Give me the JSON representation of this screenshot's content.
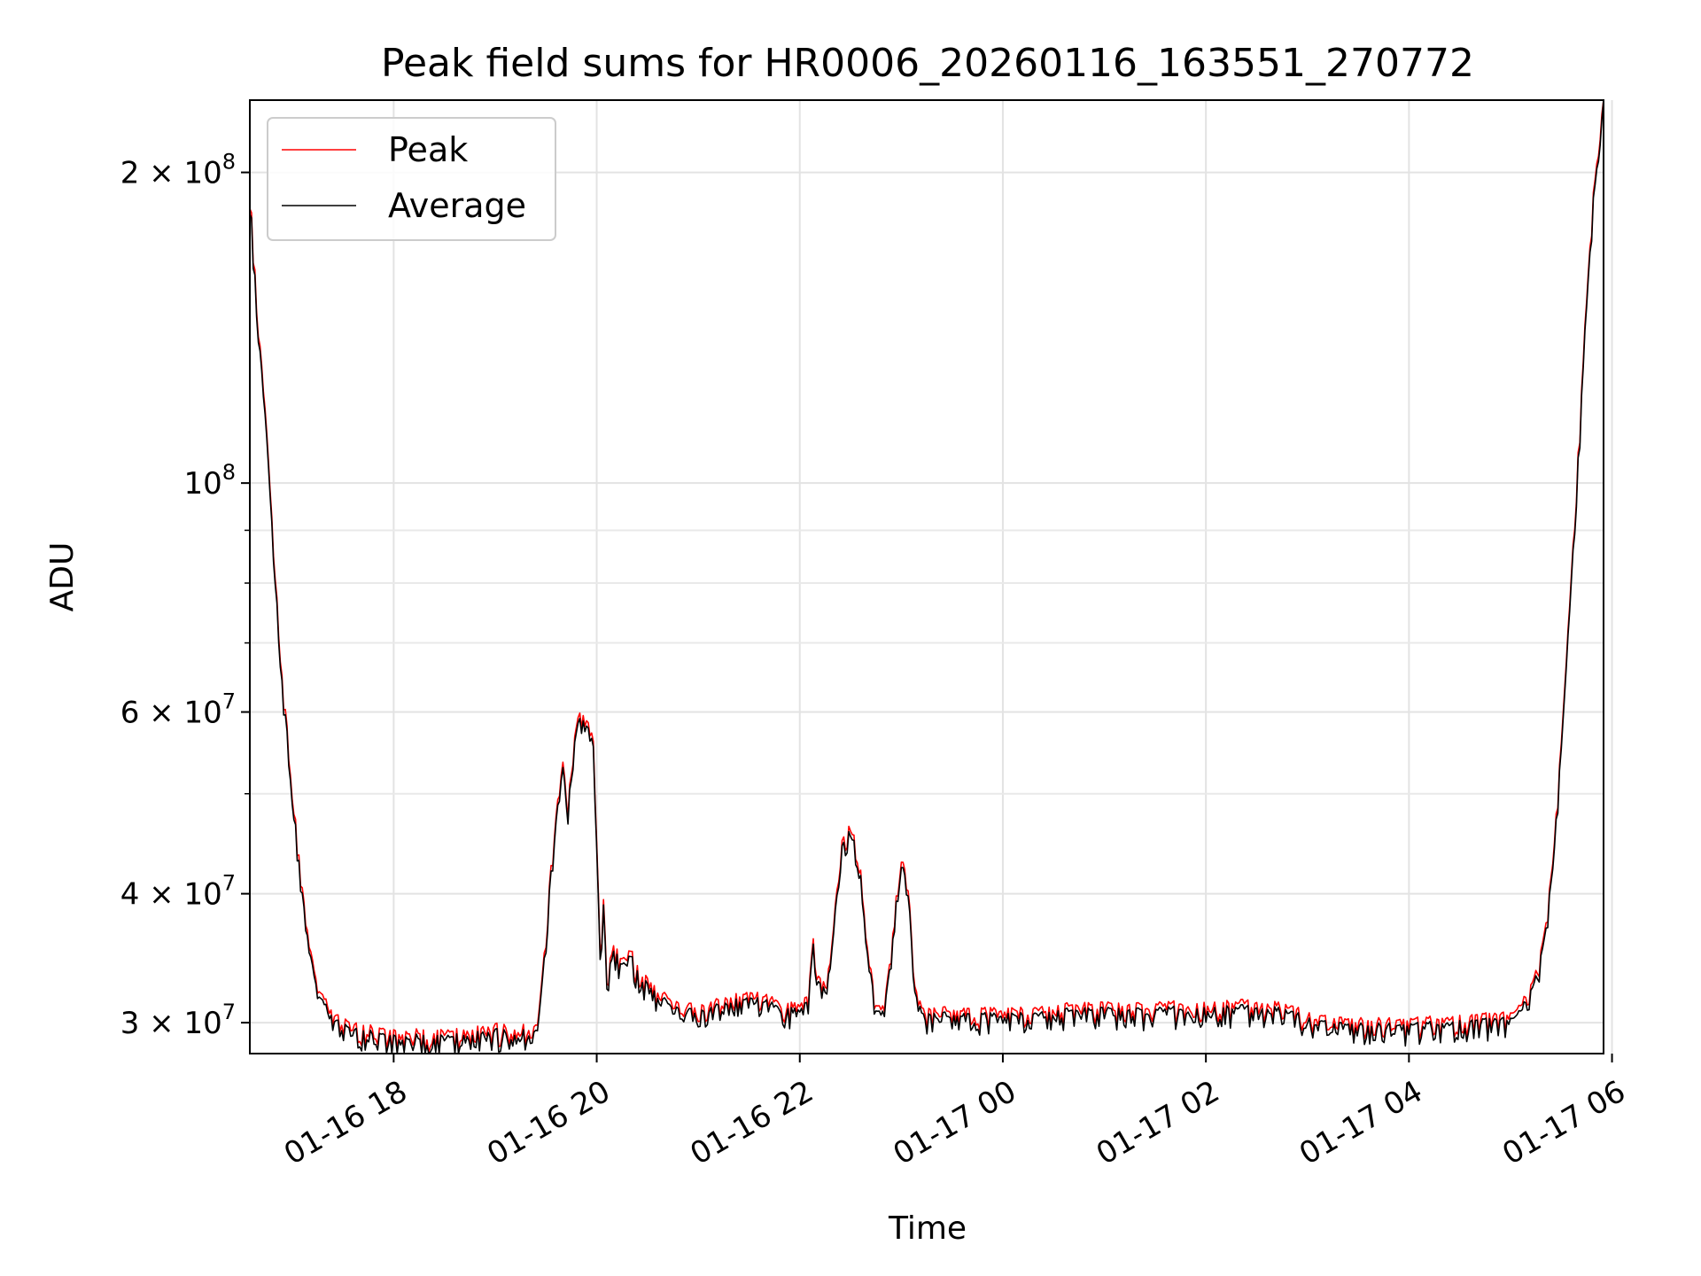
{
  "chart_data": {
    "type": "line",
    "title": "Peak field sums for HR0006_20260116_163551_270772",
    "xlabel": "Time",
    "ylabel": "ADU",
    "y_scale": "log",
    "grid": true,
    "legend_position": "top-left",
    "x_range": [
      "2026-01-16 16:35",
      "2026-01-17 05:55"
    ],
    "ylim": [
      28000000,
      235000000
    ],
    "x_ticks": [
      {
        "value": "2026-01-16 18:00",
        "label": "01-16 18"
      },
      {
        "value": "2026-01-16 20:00",
        "label": "01-16 20"
      },
      {
        "value": "2026-01-16 22:00",
        "label": "01-16 22"
      },
      {
        "value": "2026-01-17 00:00",
        "label": "01-17 00"
      },
      {
        "value": "2026-01-17 02:00",
        "label": "01-17 02"
      },
      {
        "value": "2026-01-17 04:00",
        "label": "01-17 04"
      },
      {
        "value": "2026-01-17 06:00",
        "label": "01-17 06"
      }
    ],
    "y_ticks_major": [
      {
        "value": 30000000,
        "mantissa": "3",
        "exponent": "7"
      },
      {
        "value": 40000000,
        "mantissa": "4",
        "exponent": "7"
      },
      {
        "value": 60000000,
        "mantissa": "6",
        "exponent": "7"
      },
      {
        "value": 100000000,
        "mantissa": "",
        "exponent": "8"
      },
      {
        "value": 200000000,
        "mantissa": "2",
        "exponent": "8"
      }
    ],
    "y_ticks_minor": [
      50000000,
      70000000,
      80000000,
      90000000
    ],
    "noise_fraction": 0.025,
    "series": [
      {
        "name": "Peak",
        "color": "#ff0000",
        "offset_fraction": 0.012,
        "points": [
          [
            "2026-01-16 16:35",
            190000000
          ],
          [
            "2026-01-16 16:40",
            140000000
          ],
          [
            "2026-01-16 16:45",
            110000000
          ],
          [
            "2026-01-16 16:50",
            80000000
          ],
          [
            "2026-01-16 16:55",
            62000000
          ],
          [
            "2026-01-16 17:00",
            50000000
          ],
          [
            "2026-01-16 17:05",
            41000000
          ],
          [
            "2026-01-16 17:10",
            35000000
          ],
          [
            "2026-01-16 17:15",
            32000000
          ],
          [
            "2026-01-16 17:25",
            30000000
          ],
          [
            "2026-01-16 17:40",
            29300000
          ],
          [
            "2026-01-16 18:00",
            29000000
          ],
          [
            "2026-01-16 18:30",
            28900000
          ],
          [
            "2026-01-16 19:00",
            29300000
          ],
          [
            "2026-01-16 19:25",
            29200000
          ],
          [
            "2026-01-16 19:28",
            33000000
          ],
          [
            "2026-01-16 19:32",
            40000000
          ],
          [
            "2026-01-16 19:36",
            47000000
          ],
          [
            "2026-01-16 19:40",
            53000000
          ],
          [
            "2026-01-16 19:43",
            48000000
          ],
          [
            "2026-01-16 19:46",
            55000000
          ],
          [
            "2026-01-16 19:50",
            59000000
          ],
          [
            "2026-01-16 19:55",
            59500000
          ],
          [
            "2026-01-16 19:58",
            55000000
          ],
          [
            "2026-01-16 20:00",
            46000000
          ],
          [
            "2026-01-16 20:02",
            35000000
          ],
          [
            "2026-01-16 20:04",
            39000000
          ],
          [
            "2026-01-16 20:06",
            33000000
          ],
          [
            "2026-01-16 20:10",
            35000000
          ],
          [
            "2026-01-16 20:15",
            34000000
          ],
          [
            "2026-01-16 20:20",
            35000000
          ],
          [
            "2026-01-16 20:25",
            33000000
          ],
          [
            "2026-01-16 20:35",
            32000000
          ],
          [
            "2026-01-16 20:45",
            31000000
          ],
          [
            "2026-01-16 21:00",
            30500000
          ],
          [
            "2026-01-16 21:15",
            31200000
          ],
          [
            "2026-01-16 21:35",
            31500000
          ],
          [
            "2026-01-16 21:50",
            30800000
          ],
          [
            "2026-01-16 22:00",
            30800000
          ],
          [
            "2026-01-16 22:05",
            31500000
          ],
          [
            "2026-01-16 22:08",
            35500000
          ],
          [
            "2026-01-16 22:12",
            32500000
          ],
          [
            "2026-01-16 22:18",
            33500000
          ],
          [
            "2026-01-16 22:22",
            40000000
          ],
          [
            "2026-01-16 22:25",
            45000000
          ],
          [
            "2026-01-16 22:30",
            46000000
          ],
          [
            "2026-01-16 22:35",
            43000000
          ],
          [
            "2026-01-16 22:40",
            35000000
          ],
          [
            "2026-01-16 22:45",
            30500000
          ],
          [
            "2026-01-16 22:50",
            30500000
          ],
          [
            "2026-01-16 22:55",
            36000000
          ],
          [
            "2026-01-16 22:58",
            41000000
          ],
          [
            "2026-01-16 23:02",
            43000000
          ],
          [
            "2026-01-16 23:05",
            38000000
          ],
          [
            "2026-01-16 23:08",
            32000000
          ],
          [
            "2026-01-16 23:12",
            30500000
          ],
          [
            "2026-01-16 23:30",
            30400000
          ],
          [
            "2026-01-16 23:40",
            30400000
          ],
          [
            "2026-01-17 00:00",
            30300000
          ],
          [
            "2026-01-17 00:40",
            30800000
          ],
          [
            "2026-01-17 01:20",
            30700000
          ],
          [
            "2026-01-17 02:00",
            30900000
          ],
          [
            "2026-01-17 02:30",
            30900000
          ],
          [
            "2026-01-17 02:45",
            30700000
          ],
          [
            "2026-01-17 03:00",
            30200000
          ],
          [
            "2026-01-17 03:20",
            29700000
          ],
          [
            "2026-01-17 04:00",
            29700000
          ],
          [
            "2026-01-17 04:30",
            29900000
          ],
          [
            "2026-01-17 05:00",
            30100000
          ],
          [
            "2026-01-17 05:05",
            30600000
          ],
          [
            "2026-01-17 05:10",
            31500000
          ],
          [
            "2026-01-17 05:15",
            33000000
          ],
          [
            "2026-01-17 05:20",
            36000000
          ],
          [
            "2026-01-17 05:25",
            42000000
          ],
          [
            "2026-01-17 05:30",
            55000000
          ],
          [
            "2026-01-17 05:35",
            75000000
          ],
          [
            "2026-01-17 05:40",
            105000000
          ],
          [
            "2026-01-17 05:45",
            150000000
          ],
          [
            "2026-01-17 05:50",
            200000000
          ],
          [
            "2026-01-17 05:55",
            235000000
          ]
        ]
      },
      {
        "name": "Average",
        "color": "#000000",
        "offset_fraction": 0,
        "points": [
          [
            "2026-01-16 16:35",
            190000000
          ],
          [
            "2026-01-16 16:40",
            140000000
          ],
          [
            "2026-01-16 16:45",
            110000000
          ],
          [
            "2026-01-16 16:50",
            80000000
          ],
          [
            "2026-01-16 16:55",
            62000000
          ],
          [
            "2026-01-16 17:00",
            50000000
          ],
          [
            "2026-01-16 17:05",
            41000000
          ],
          [
            "2026-01-16 17:10",
            35000000
          ],
          [
            "2026-01-16 17:15",
            32000000
          ],
          [
            "2026-01-16 17:25",
            30000000
          ],
          [
            "2026-01-16 17:40",
            29300000
          ],
          [
            "2026-01-16 18:00",
            29000000
          ],
          [
            "2026-01-16 18:30",
            28900000
          ],
          [
            "2026-01-16 19:00",
            29300000
          ],
          [
            "2026-01-16 19:25",
            29200000
          ],
          [
            "2026-01-16 19:28",
            33000000
          ],
          [
            "2026-01-16 19:32",
            40000000
          ],
          [
            "2026-01-16 19:36",
            47000000
          ],
          [
            "2026-01-16 19:40",
            53000000
          ],
          [
            "2026-01-16 19:43",
            48000000
          ],
          [
            "2026-01-16 19:46",
            55000000
          ],
          [
            "2026-01-16 19:50",
            59000000
          ],
          [
            "2026-01-16 19:55",
            59500000
          ],
          [
            "2026-01-16 19:58",
            55000000
          ],
          [
            "2026-01-16 20:00",
            46000000
          ],
          [
            "2026-01-16 20:02",
            35000000
          ],
          [
            "2026-01-16 20:04",
            39000000
          ],
          [
            "2026-01-16 20:06",
            33000000
          ],
          [
            "2026-01-16 20:10",
            35000000
          ],
          [
            "2026-01-16 20:15",
            34000000
          ],
          [
            "2026-01-16 20:20",
            35000000
          ],
          [
            "2026-01-16 20:25",
            33000000
          ],
          [
            "2026-01-16 20:35",
            32000000
          ],
          [
            "2026-01-16 20:45",
            31000000
          ],
          [
            "2026-01-16 21:00",
            30500000
          ],
          [
            "2026-01-16 21:15",
            31200000
          ],
          [
            "2026-01-16 21:35",
            31500000
          ],
          [
            "2026-01-16 21:50",
            30800000
          ],
          [
            "2026-01-16 22:00",
            30800000
          ],
          [
            "2026-01-16 22:05",
            31500000
          ],
          [
            "2026-01-16 22:08",
            35500000
          ],
          [
            "2026-01-16 22:12",
            32500000
          ],
          [
            "2026-01-16 22:18",
            33500000
          ],
          [
            "2026-01-16 22:22",
            40000000
          ],
          [
            "2026-01-16 22:25",
            45000000
          ],
          [
            "2026-01-16 22:30",
            46000000
          ],
          [
            "2026-01-16 22:35",
            43000000
          ],
          [
            "2026-01-16 22:40",
            35000000
          ],
          [
            "2026-01-16 22:45",
            30500000
          ],
          [
            "2026-01-16 22:50",
            30500000
          ],
          [
            "2026-01-16 22:55",
            36000000
          ],
          [
            "2026-01-16 22:58",
            41000000
          ],
          [
            "2026-01-16 23:02",
            43000000
          ],
          [
            "2026-01-16 23:05",
            38000000
          ],
          [
            "2026-01-16 23:08",
            32000000
          ],
          [
            "2026-01-16 23:12",
            30500000
          ],
          [
            "2026-01-16 23:30",
            30400000
          ],
          [
            "2026-01-16 23:40",
            30400000
          ],
          [
            "2026-01-17 00:00",
            30300000
          ],
          [
            "2026-01-17 00:40",
            30800000
          ],
          [
            "2026-01-17 01:20",
            30700000
          ],
          [
            "2026-01-17 02:00",
            30900000
          ],
          [
            "2026-01-17 02:30",
            30900000
          ],
          [
            "2026-01-17 02:45",
            30700000
          ],
          [
            "2026-01-17 03:00",
            30200000
          ],
          [
            "2026-01-17 03:20",
            29700000
          ],
          [
            "2026-01-17 04:00",
            29700000
          ],
          [
            "2026-01-17 04:30",
            29900000
          ],
          [
            "2026-01-17 05:00",
            30100000
          ],
          [
            "2026-01-17 05:05",
            30600000
          ],
          [
            "2026-01-17 05:10",
            31500000
          ],
          [
            "2026-01-17 05:15",
            33000000
          ],
          [
            "2026-01-17 05:20",
            36000000
          ],
          [
            "2026-01-17 05:25",
            42000000
          ],
          [
            "2026-01-17 05:30",
            55000000
          ],
          [
            "2026-01-17 05:35",
            75000000
          ],
          [
            "2026-01-17 05:40",
            105000000
          ],
          [
            "2026-01-17 05:45",
            150000000
          ],
          [
            "2026-01-17 05:50",
            200000000
          ],
          [
            "2026-01-17 05:55",
            235000000
          ]
        ]
      }
    ]
  }
}
